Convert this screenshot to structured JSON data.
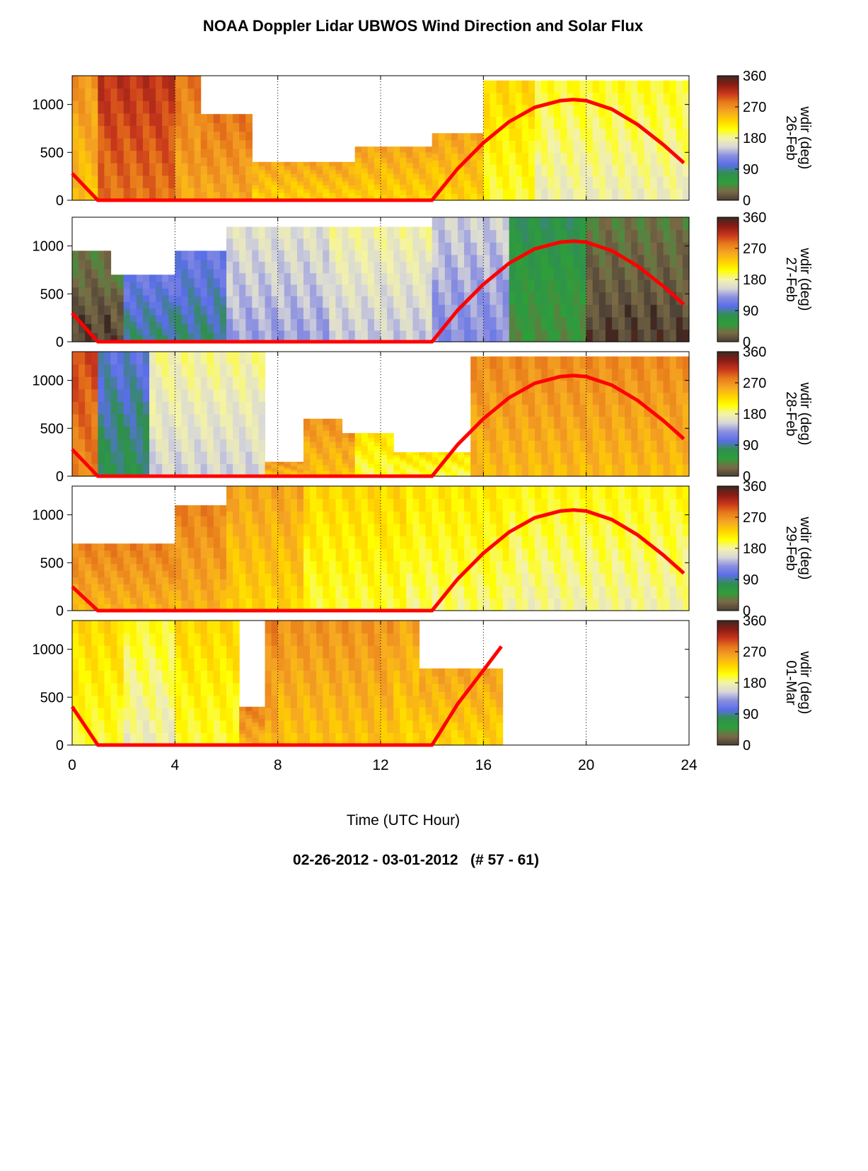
{
  "chart_data": {
    "type": "heatmap",
    "title": "NOAA Doppler Lidar UBWOS Wind Direction and Solar Flux",
    "subtitle": "02-26-2012 - 03-01-2012   (# 57 - 61)",
    "xlabel": "Time (UTC Hour)",
    "xlim": [
      0,
      24
    ],
    "xticks": [
      0,
      4,
      8,
      12,
      16,
      20,
      24
    ],
    "ylim": [
      0,
      1300
    ],
    "yticks": [
      0,
      500,
      1000
    ],
    "colorbar": {
      "label": "wdir (deg)",
      "range": [
        0,
        360
      ],
      "ticks": [
        0,
        90,
        180,
        270,
        360
      ],
      "colors": [
        "#4a3f36",
        "#7a6a45",
        "#2e9e3a",
        "#2f8f4f",
        "#5a6ee8",
        "#8a8ee0",
        "#d8d8d8",
        "#f4f3a8",
        "#ffff00",
        "#ffd000",
        "#f5a623",
        "#e87a1a",
        "#c8361c",
        "#8a1c14",
        "#3a2a22"
      ]
    },
    "grid": "vertical dotted at 4-hour ticks",
    "solar_flux_color": "#ff0000",
    "panels": [
      {
        "date": "26-Feb",
        "ylabel": "wdir (deg) 26-Feb",
        "solar_flux_curve": {
          "x": [
            0,
            1,
            14,
            15,
            16,
            17,
            18,
            19,
            19.5,
            20,
            21,
            22,
            23,
            23.8
          ],
          "y": [
            280,
            0,
            0,
            330,
            600,
            820,
            970,
            1040,
            1050,
            1040,
            950,
            790,
            580,
            390
          ]
        },
        "top_height": [
          {
            "x": [
              0,
              5
            ],
            "y": 1300
          },
          {
            "x": [
              5,
              7
            ],
            "y": 900
          },
          {
            "x": [
              7,
              11
            ],
            "y": 400
          },
          {
            "x": [
              11,
              14
            ],
            "y": 560
          },
          {
            "x": [
              14,
              16
            ],
            "y": 700
          },
          {
            "x": [
              16,
              24
            ],
            "y": 1250
          }
        ],
        "bands": [
          {
            "x": [
              0,
              1
            ],
            "wdir": 255
          },
          {
            "x": [
              1,
              4
            ],
            "wdir": 300
          },
          {
            "x": [
              4,
              7
            ],
            "wdir": 270
          },
          {
            "x": [
              7,
              16
            ],
            "wdir": 245
          },
          {
            "x": [
              16,
              18
            ],
            "wdir": 215
          },
          {
            "x": [
              18,
              24
            ],
            "wdir": 190
          }
        ]
      },
      {
        "date": "27-Feb",
        "ylabel": "wdir (deg) 27-Feb",
        "solar_flux_curve": {
          "x": [
            0,
            1,
            14,
            15,
            16,
            17,
            18,
            19,
            19.5,
            20,
            21,
            22,
            23,
            23.8
          ],
          "y": [
            300,
            0,
            0,
            330,
            600,
            820,
            970,
            1040,
            1050,
            1040,
            950,
            790,
            580,
            390
          ]
        },
        "top_height": [
          {
            "x": [
              0,
              1.5
            ],
            "y": 950
          },
          {
            "x": [
              1.5,
              4
            ],
            "y": 700
          },
          {
            "x": [
              4,
              6
            ],
            "y": 950
          },
          {
            "x": [
              6,
              14
            ],
            "y": 1200
          },
          {
            "x": [
              14,
              24
            ],
            "y": 1300
          }
        ],
        "bands": [
          {
            "x": [
              0,
              2
            ],
            "wdir": 20
          },
          {
            "x": [
              2,
              6
            ],
            "wdir": 100
          },
          {
            "x": [
              6,
              10
            ],
            "wdir": 150
          },
          {
            "x": [
              10,
              14
            ],
            "wdir": 165
          },
          {
            "x": [
              14,
              17
            ],
            "wdir": 140
          },
          {
            "x": [
              17,
              20
            ],
            "wdir": 60
          },
          {
            "x": [
              20,
              24
            ],
            "wdir": 20
          }
        ]
      },
      {
        "date": "28-Feb",
        "ylabel": "wdir (deg) 28-Feb",
        "solar_flux_curve": {
          "x": [
            0,
            1,
            14,
            15,
            16,
            17,
            18,
            19,
            19.5,
            20,
            21,
            22,
            23,
            23.8
          ],
          "y": [
            280,
            0,
            0,
            330,
            600,
            820,
            970,
            1040,
            1050,
            1040,
            950,
            790,
            580,
            390
          ]
        },
        "top_height": [
          {
            "x": [
              0,
              7.5
            ],
            "y": 1300
          },
          {
            "x": [
              7.5,
              9
            ],
            "y": 150
          },
          {
            "x": [
              9,
              10.5
            ],
            "y": 600
          },
          {
            "x": [
              10.5,
              12.5
            ],
            "y": 450
          },
          {
            "x": [
              12.5,
              15.5
            ],
            "y": 250
          },
          {
            "x": [
              15.5,
              24
            ],
            "y": 1250
          }
        ],
        "bands": [
          {
            "x": [
              0,
              1
            ],
            "wdir": 290
          },
          {
            "x": [
              1,
              3
            ],
            "wdir": 90
          },
          {
            "x": [
              3,
              7.5
            ],
            "wdir": 170
          },
          {
            "x": [
              7.5,
              11
            ],
            "wdir": 255
          },
          {
            "x": [
              11,
              15.5
            ],
            "wdir": 210
          },
          {
            "x": [
              15.5,
              24
            ],
            "wdir": 260
          }
        ]
      },
      {
        "date": "29-Feb",
        "ylabel": "wdir (deg) 29-Feb",
        "solar_flux_curve": {
          "x": [
            0,
            1,
            14,
            15,
            16,
            17,
            18,
            19,
            19.5,
            20,
            21,
            22,
            23,
            23.8
          ],
          "y": [
            250,
            0,
            0,
            330,
            600,
            820,
            970,
            1040,
            1050,
            1040,
            950,
            790,
            580,
            390
          ]
        },
        "top_height": [
          {
            "x": [
              0,
              4
            ],
            "y": 700
          },
          {
            "x": [
              4,
              6
            ],
            "y": 1100
          },
          {
            "x": [
              6,
              24
            ],
            "y": 1300
          }
        ],
        "bands": [
          {
            "x": [
              0,
              6
            ],
            "wdir": 265
          },
          {
            "x": [
              6,
              9
            ],
            "wdir": 245
          },
          {
            "x": [
              9,
              13
            ],
            "wdir": 215
          },
          {
            "x": [
              13,
              17
            ],
            "wdir": 205
          },
          {
            "x": [
              17,
              24
            ],
            "wdir": 195
          }
        ]
      },
      {
        "date": "01-Mar",
        "ylabel": "wdir (deg) 01-Mar",
        "solar_flux_curve": {
          "x": [
            0,
            1,
            14,
            15,
            16,
            16.7
          ],
          "y": [
            400,
            0,
            0,
            430,
            780,
            1030
          ]
        },
        "top_height": [
          {
            "x": [
              0,
              6.5
            ],
            "y": 1300
          },
          {
            "x": [
              6.5,
              7.5
            ],
            "y": 400
          },
          {
            "x": [
              7.5,
              13.5
            ],
            "y": 1300
          },
          {
            "x": [
              13.5,
              16.7
            ],
            "y": 800
          },
          {
            "x": [
              16.7,
              24
            ],
            "y": 0
          }
        ],
        "bands": [
          {
            "x": [
              0,
              2
            ],
            "wdir": 215
          },
          {
            "x": [
              2,
              4
            ],
            "wdir": 190
          },
          {
            "x": [
              4,
              6.5
            ],
            "wdir": 215
          },
          {
            "x": [
              6.5,
              8
            ],
            "wdir": 265
          },
          {
            "x": [
              8,
              12.5
            ],
            "wdir": 255
          },
          {
            "x": [
              12.5,
              16.7
            ],
            "wdir": 245
          }
        ]
      }
    ]
  }
}
